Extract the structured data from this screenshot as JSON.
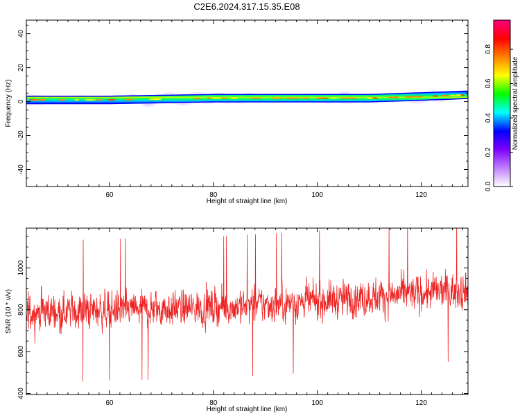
{
  "title": "C2E6.2024.317.15.35.E08",
  "chart_data": [
    {
      "type": "heatmap",
      "xlabel": "Height of straight line (km)",
      "ylabel": "Frequency (Hz)",
      "xlim": [
        44,
        129
      ],
      "ylim": [
        -50,
        48
      ],
      "x_ticks": [
        60,
        80,
        100,
        120
      ],
      "y_ticks": [
        -40,
        -20,
        0,
        20,
        40
      ],
      "description_band": {
        "frequency_center_hz": [
          1,
          1,
          2,
          2,
          2,
          3,
          4
        ],
        "x_at": [
          44,
          60,
          80,
          100,
          110,
          120,
          129
        ]
      },
      "colorbar": {
        "label": "Normalized spectral amplitude",
        "range": [
          0,
          0.97
        ],
        "ticks": [
          0.0,
          0.2,
          0.4,
          0.6,
          0.8
        ],
        "colors": [
          "#ffffff",
          "#c080ff",
          "#8000ff",
          "#0000ff",
          "#00ffff",
          "#00ff00",
          "#ffff00",
          "#ff8000",
          "#ff0000",
          "#ff0080"
        ]
      }
    },
    {
      "type": "line",
      "xlabel": "Height of straight line (km)",
      "ylabel": "SNR (10 * v/v)",
      "xlim": [
        44,
        129
      ],
      "ylim": [
        395,
        1190
      ],
      "x_ticks": [
        60,
        80,
        100,
        120
      ],
      "y_ticks": [
        400,
        600,
        800,
        1000
      ],
      "series": [
        {
          "color": "#ee2222",
          "trend_x": [
            44,
            60,
            80,
            100,
            120,
            129
          ],
          "trend_mean": [
            790,
            800,
            810,
            840,
            880,
            895
          ],
          "noise_amplitude": 130
        }
      ]
    }
  ]
}
